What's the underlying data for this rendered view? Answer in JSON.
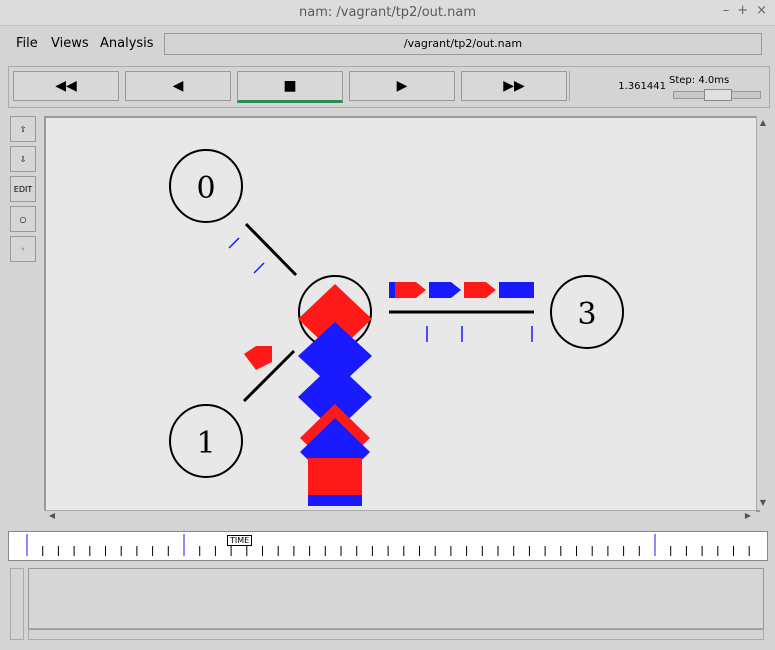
{
  "window": {
    "title": "nam: /vagrant/tp2/out.nam"
  },
  "menu": {
    "file": "File",
    "views": "Views",
    "analysis": "Analysis"
  },
  "path": "/vagrant/tp2/out.nam",
  "controls": {
    "rewind": "◀◀",
    "back": "◀",
    "stop": "■",
    "play": "▶",
    "fastforward": "▶▶",
    "time": "1.361441",
    "step": "Step: 4.0ms"
  },
  "tools": {
    "edit": "EDIT"
  },
  "nodes": [
    "0",
    "1",
    "3"
  ],
  "timeline": {
    "label": "TIME"
  },
  "colors": {
    "red": "#ff1a1a",
    "blue": "#1a1aff",
    "active": "#2e8b57"
  },
  "window_buttons": {
    "min": "–",
    "max": "+",
    "close": "×"
  }
}
